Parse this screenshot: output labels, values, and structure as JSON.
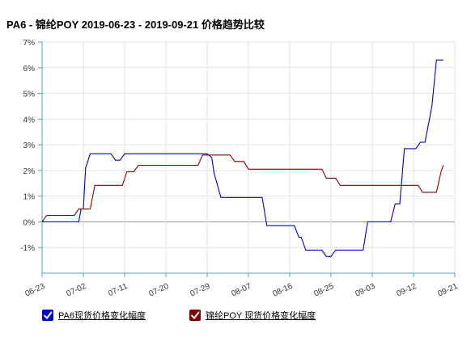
{
  "title": "PA6 - 锦纶POY 2019-06-23 - 2019-09-21 价格趋势比较",
  "chart_data": {
    "type": "line",
    "x_axis": {
      "ticks": [
        "06-23",
        "07-02",
        "07-11",
        "07-20",
        "07-29",
        "08-07",
        "08-16",
        "08-25",
        "09-03",
        "09-12",
        "09-21"
      ]
    },
    "y_axis": {
      "min": -2,
      "max": 7,
      "ticks": [
        "-1%",
        "0%",
        "1%",
        "2%",
        "3%",
        "4%",
        "5%",
        "6%",
        "7%"
      ],
      "tick_values": [
        -1,
        0,
        1,
        2,
        3,
        4,
        5,
        6,
        7
      ]
    },
    "grid": true,
    "series": [
      {
        "name": "PA6现货价格变化幅度",
        "color": "#0000cc",
        "points": [
          [
            0,
            0
          ],
          [
            8,
            0
          ],
          [
            8.5,
            0.5
          ],
          [
            9,
            0.5
          ],
          [
            9.5,
            2.1
          ],
          [
            10.5,
            2.65
          ],
          [
            15,
            2.65
          ],
          [
            16,
            2.4
          ],
          [
            17,
            2.4
          ],
          [
            18,
            2.65
          ],
          [
            36,
            2.65
          ],
          [
            37,
            2.5
          ],
          [
            37.5,
            1.9
          ],
          [
            39,
            0.95
          ],
          [
            48,
            0.95
          ],
          [
            49,
            -0.15
          ],
          [
            55,
            -0.15
          ],
          [
            56,
            -0.6
          ],
          [
            56.5,
            -0.6
          ],
          [
            57.5,
            -1.1
          ],
          [
            61,
            -1.1
          ],
          [
            62,
            -1.35
          ],
          [
            63,
            -1.35
          ],
          [
            64,
            -1.1
          ],
          [
            70,
            -1.1
          ],
          [
            71,
            0
          ],
          [
            76,
            0
          ],
          [
            77,
            0.7
          ],
          [
            78,
            0.7
          ],
          [
            79,
            2.85
          ],
          [
            81.5,
            2.85
          ],
          [
            82.5,
            3.1
          ],
          [
            83.5,
            3.1
          ],
          [
            85,
            4.5
          ],
          [
            86,
            6.3
          ],
          [
            87.5,
            6.3
          ]
        ]
      },
      {
        "name": "锦纶POY 现货价格变化幅度",
        "color": "#800000",
        "points": [
          [
            0,
            0
          ],
          [
            1,
            0.25
          ],
          [
            7,
            0.25
          ],
          [
            8,
            0.5
          ],
          [
            10.5,
            0.5
          ],
          [
            11.5,
            1.42
          ],
          [
            17.5,
            1.42
          ],
          [
            18.5,
            1.95
          ],
          [
            20,
            1.95
          ],
          [
            21,
            2.2
          ],
          [
            34,
            2.2
          ],
          [
            35,
            2.6
          ],
          [
            41,
            2.6
          ],
          [
            42,
            2.35
          ],
          [
            44,
            2.35
          ],
          [
            45,
            2.05
          ],
          [
            61,
            2.05
          ],
          [
            62,
            1.7
          ],
          [
            64,
            1.7
          ],
          [
            65,
            1.42
          ],
          [
            81,
            1.42
          ],
          [
            82,
            1.42
          ],
          [
            83,
            1.15
          ],
          [
            86,
            1.15
          ],
          [
            87,
            1.95
          ],
          [
            87.5,
            2.2
          ]
        ]
      }
    ]
  },
  "legend": {
    "items": [
      {
        "label": "PA6现货价格变化幅度",
        "color": "#0000cc"
      },
      {
        "label": "锦纶POY 现货价格变化幅度",
        "color": "#800000"
      }
    ]
  }
}
